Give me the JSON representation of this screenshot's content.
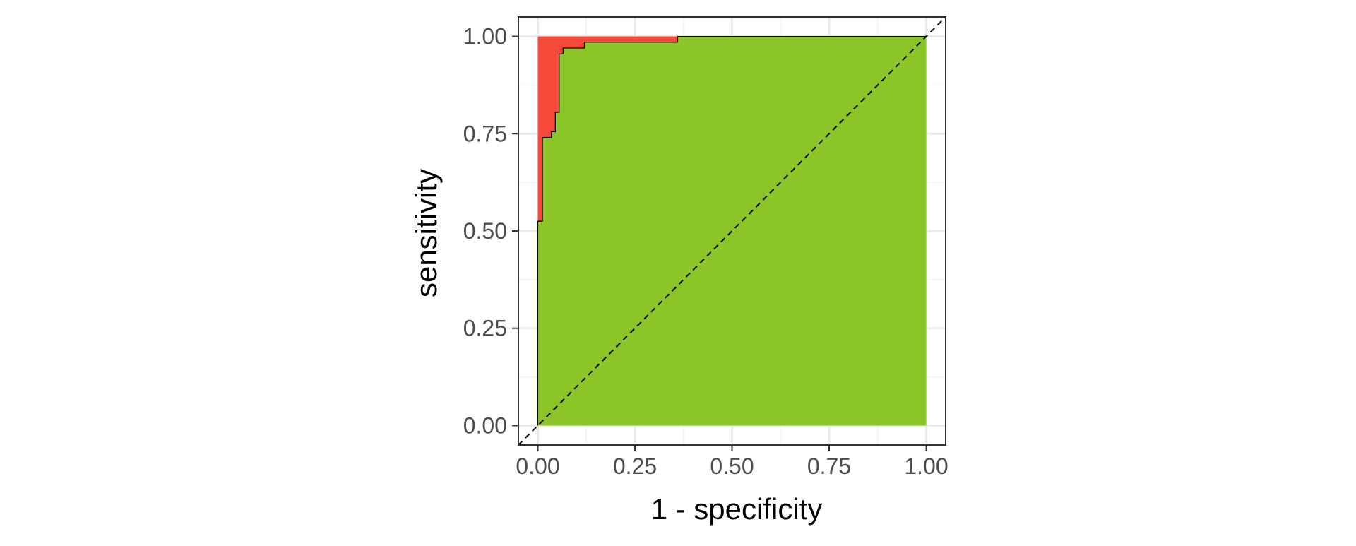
{
  "chart_data": {
    "type": "area",
    "title": "",
    "xlabel": "1 - specificity",
    "ylabel": "sensitivity",
    "xlim": [
      -0.05,
      1.05
    ],
    "ylim": [
      -0.05,
      1.05
    ],
    "x_ticks": [
      "0.00",
      "0.25",
      "0.50",
      "0.75",
      "1.00"
    ],
    "y_ticks": [
      "0.00",
      "0.25",
      "0.50",
      "0.75",
      "1.00"
    ],
    "x_tick_values": [
      0,
      0.25,
      0.5,
      0.75,
      1
    ],
    "y_tick_values": [
      0,
      0.25,
      0.5,
      0.75,
      1
    ],
    "grid": true,
    "reference_line": "diagonal (dashed)",
    "roc_curve": {
      "x": [
        0.0,
        0.0,
        0.012,
        0.012,
        0.035,
        0.035,
        0.045,
        0.045,
        0.055,
        0.055,
        0.065,
        0.065,
        0.12,
        0.12,
        0.36,
        0.36,
        1.0
      ],
      "y": [
        0.0,
        0.525,
        0.525,
        0.74,
        0.74,
        0.755,
        0.755,
        0.805,
        0.805,
        0.955,
        0.955,
        0.97,
        0.97,
        0.985,
        0.985,
        1.0,
        1.0
      ]
    },
    "colors": {
      "area_under_curve": "#8bc527",
      "area_above_curve": "#f84a3b",
      "curve": "#000000",
      "diagonal": "#000000",
      "grid_major": "#ebebeb",
      "grid_minor": "#f2f2f2",
      "panel_border": "#333333",
      "tick_label": "#4d4d4d"
    }
  }
}
